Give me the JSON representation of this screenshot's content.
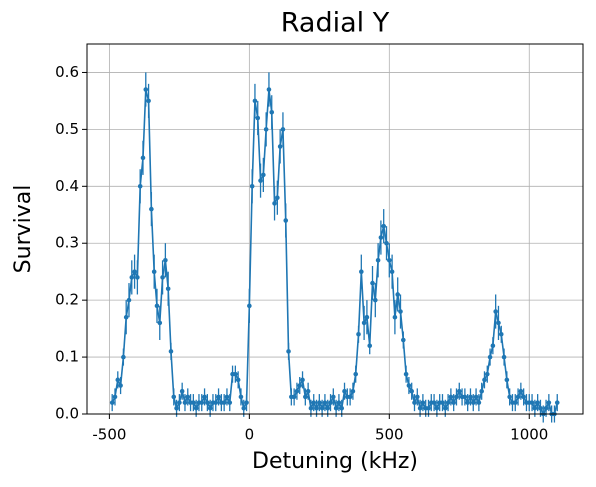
{
  "chart_data": {
    "type": "line",
    "title": "Radial Y",
    "xlabel": "Detuning (kHz)",
    "ylabel": "Survival",
    "color": "#1f77b4",
    "grid": true,
    "xlim": [
      -580,
      1192
    ],
    "ylim": [
      0,
      0.65
    ],
    "xticks": [
      -500,
      0,
      500,
      1000
    ],
    "yticks": [
      {
        "value": 0,
        "label": "0.0"
      },
      {
        "value": 0.1,
        "label": "0.1"
      },
      {
        "value": 0.2,
        "label": "0.2"
      },
      {
        "value": 0.3,
        "label": "0.3"
      },
      {
        "value": 0.4,
        "label": "0.4"
      },
      {
        "value": 0.5,
        "label": "0.5"
      },
      {
        "value": 0.6,
        "label": "0.6"
      }
    ],
    "x": [
      -490,
      -480,
      -470,
      -460,
      -450,
      -440,
      -430,
      -420,
      -410,
      -400,
      -390,
      -380,
      -370,
      -360,
      -350,
      -340,
      -330,
      -320,
      -310,
      -300,
      -290,
      -280,
      -270,
      -260,
      -250,
      -240,
      -230,
      -220,
      -210,
      -200,
      -190,
      -180,
      -170,
      -160,
      -150,
      -140,
      -130,
      -120,
      -110,
      -100,
      -90,
      -80,
      -70,
      -60,
      -50,
      -40,
      -30,
      -20,
      -10,
      0,
      10,
      20,
      30,
      40,
      50,
      60,
      70,
      80,
      90,
      100,
      110,
      120,
      130,
      140,
      150,
      160,
      170,
      180,
      190,
      200,
      210,
      220,
      230,
      240,
      250,
      260,
      270,
      280,
      290,
      300,
      310,
      320,
      330,
      340,
      350,
      360,
      370,
      380,
      390,
      400,
      410,
      420,
      430,
      440,
      450,
      460,
      470,
      480,
      490,
      500,
      510,
      520,
      530,
      540,
      550,
      560,
      570,
      580,
      590,
      600,
      610,
      620,
      630,
      640,
      650,
      660,
      670,
      680,
      690,
      700,
      710,
      720,
      730,
      740,
      750,
      760,
      770,
      780,
      790,
      800,
      810,
      820,
      830,
      840,
      850,
      860,
      870,
      880,
      890,
      900,
      910,
      920,
      930,
      940,
      950,
      960,
      970,
      980,
      990,
      1000,
      1010,
      1020,
      1030,
      1040,
      1050,
      1060,
      1070,
      1080,
      1090,
      1100
    ],
    "values": [
      0.02,
      0.03,
      0.06,
      0.05,
      0.1,
      0.17,
      0.2,
      0.24,
      0.25,
      0.24,
      0.4,
      0.45,
      0.57,
      0.55,
      0.36,
      0.25,
      0.19,
      0.16,
      0.24,
      0.27,
      0.22,
      0.11,
      0.03,
      0.01,
      0.02,
      0.04,
      0.02,
      0.03,
      0.02,
      0.02,
      0.01,
      0.02,
      0.02,
      0.03,
      0.02,
      0.01,
      0.02,
      0.02,
      0.03,
      0.02,
      0.02,
      0.03,
      0.02,
      0.07,
      0.07,
      0.06,
      0.03,
      0.01,
      0.02,
      0.19,
      0.4,
      0.55,
      0.52,
      0.41,
      0.42,
      0.5,
      0.57,
      0.53,
      0.37,
      0.38,
      0.47,
      0.5,
      0.34,
      0.11,
      0.03,
      0.03,
      0.04,
      0.05,
      0.06,
      0.03,
      0.04,
      0.01,
      0.02,
      0.01,
      0.02,
      0.01,
      0.02,
      0.01,
      0.02,
      0.03,
      0.01,
      0.02,
      0.01,
      0.04,
      0.03,
      0.03,
      0.04,
      0.07,
      0.14,
      0.25,
      0.16,
      0.17,
      0.12,
      0.23,
      0.2,
      0.27,
      0.31,
      0.33,
      0.3,
      0.27,
      0.25,
      0.17,
      0.21,
      0.18,
      0.13,
      0.07,
      0.05,
      0.04,
      0.02,
      0.03,
      0.01,
      0.02,
      0.01,
      0.01,
      0.02,
      0.02,
      0.01,
      0.02,
      0.02,
      0.01,
      0.02,
      0.03,
      0.02,
      0.03,
      0.04,
      0.03,
      0.03,
      0.02,
      0.03,
      0.02,
      0.03,
      0.02,
      0.04,
      0.06,
      0.07,
      0.1,
      0.12,
      0.18,
      0.16,
      0.14,
      0.1,
      0.06,
      0.03,
      0.02,
      0.02,
      0.03,
      0.04,
      0.03,
      0.02,
      0.02,
      0.02,
      0.01,
      0.02,
      0.01,
      0.0,
      0.01,
      0.02,
      0.0,
      0.0,
      0.02
    ],
    "errors": [
      0.015,
      0.015,
      0.015,
      0.015,
      0.015,
      0.03,
      0.03,
      0.03,
      0.03,
      0.03,
      0.03,
      0.03,
      0.03,
      0.03,
      0.03,
      0.03,
      0.03,
      0.03,
      0.03,
      0.03,
      0.03,
      0.015,
      0.015,
      0.015,
      0.015,
      0.015,
      0.015,
      0.015,
      0.015,
      0.015,
      0.015,
      0.015,
      0.015,
      0.015,
      0.015,
      0.015,
      0.015,
      0.015,
      0.015,
      0.015,
      0.015,
      0.015,
      0.015,
      0.015,
      0.015,
      0.015,
      0.015,
      0.015,
      0.015,
      0.03,
      0.03,
      0.03,
      0.03,
      0.03,
      0.03,
      0.03,
      0.03,
      0.03,
      0.03,
      0.03,
      0.03,
      0.03,
      0.03,
      0.015,
      0.015,
      0.015,
      0.015,
      0.015,
      0.015,
      0.015,
      0.015,
      0.015,
      0.015,
      0.015,
      0.015,
      0.015,
      0.015,
      0.015,
      0.015,
      0.015,
      0.015,
      0.015,
      0.015,
      0.015,
      0.015,
      0.015,
      0.015,
      0.015,
      0.015,
      0.03,
      0.03,
      0.03,
      0.015,
      0.03,
      0.03,
      0.03,
      0.03,
      0.03,
      0.03,
      0.03,
      0.03,
      0.03,
      0.03,
      0.03,
      0.015,
      0.015,
      0.015,
      0.015,
      0.015,
      0.015,
      0.015,
      0.015,
      0.015,
      0.015,
      0.015,
      0.015,
      0.015,
      0.015,
      0.015,
      0.015,
      0.015,
      0.015,
      0.015,
      0.015,
      0.015,
      0.015,
      0.015,
      0.015,
      0.015,
      0.015,
      0.015,
      0.015,
      0.015,
      0.015,
      0.015,
      0.015,
      0.015,
      0.03,
      0.03,
      0.015,
      0.015,
      0.015,
      0.015,
      0.015,
      0.015,
      0.015,
      0.015,
      0.015,
      0.015,
      0.015,
      0.015,
      0.015,
      0.015,
      0.015,
      0.015,
      0.015,
      0.015,
      0.015,
      0.015,
      0.015
    ]
  }
}
